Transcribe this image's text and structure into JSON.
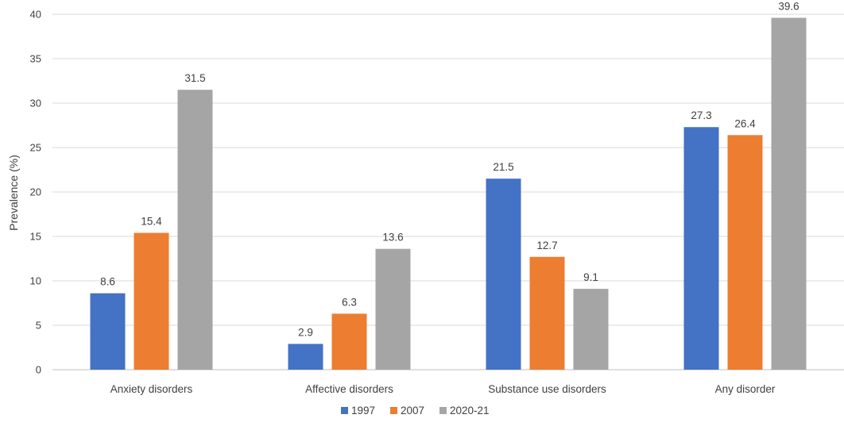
{
  "chart_data": {
    "type": "bar",
    "title": "",
    "xlabel": "",
    "ylabel": "Prevalence (%)",
    "ylim": [
      0,
      40
    ],
    "yticks": [
      0,
      5,
      10,
      15,
      20,
      25,
      30,
      35,
      40
    ],
    "categories": [
      "Anxiety disorders",
      "Affective disorders",
      "Substance use disorders",
      "Any disorder"
    ],
    "series": [
      {
        "name": "1997",
        "color": "#4472c4",
        "values": [
          8.6,
          2.9,
          21.5,
          27.3
        ]
      },
      {
        "name": "2007",
        "color": "#ed7d31",
        "values": [
          15.4,
          6.3,
          12.7,
          26.4
        ]
      },
      {
        "name": "2020-21",
        "color": "#a5a5a5",
        "values": [
          31.5,
          13.6,
          9.1,
          39.6
        ]
      }
    ],
    "grid": true,
    "legend_position": "bottom-center"
  }
}
